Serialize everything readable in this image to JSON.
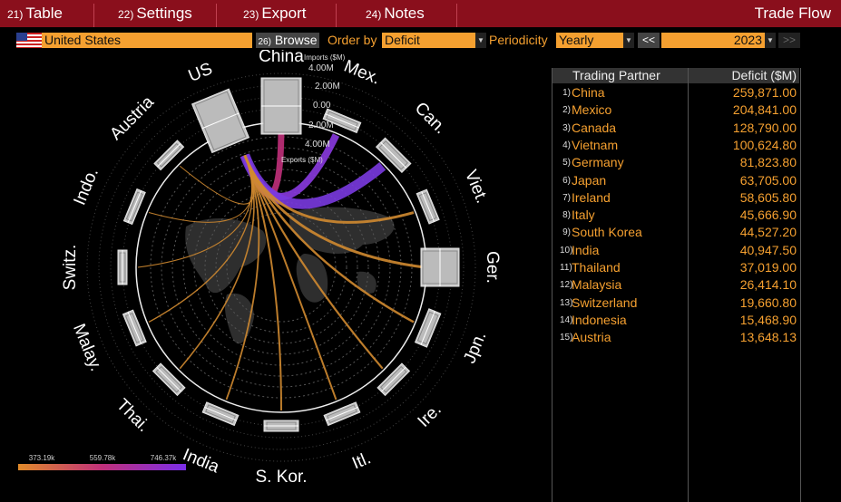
{
  "menu": {
    "items": [
      {
        "num": "21)",
        "label": "Table"
      },
      {
        "num": "22)",
        "label": "Settings"
      },
      {
        "num": "23)",
        "label": "Export"
      },
      {
        "num": "24)",
        "label": "Notes"
      }
    ],
    "title": "Trade Flow"
  },
  "toolbar": {
    "country": "United States",
    "browse": {
      "num": "26)",
      "label": "Browse"
    },
    "order_label": "Order by",
    "order_value": "Deficit",
    "periodicity_label": "Periodicity",
    "periodicity_value": "Yearly",
    "prev": "<<",
    "year": "2023",
    "next": ">>"
  },
  "diagram": {
    "nodes": [
      "US",
      "China",
      "Mex.",
      "Can.",
      "Viet.",
      "Ger.",
      "Jpn.",
      "Ire.",
      "Itl.",
      "S. Kor.",
      "India",
      "Thai.",
      "Malay.",
      "Switz.",
      "Indo.",
      "Austria"
    ],
    "axis_labels": {
      "imports": "Imports ($M)",
      "exports": "Exports ($M)",
      "ticks": [
        "4.00M",
        "2.00M",
        "0.00",
        "2.00M",
        "4.00M"
      ]
    },
    "legend": [
      "373.19k",
      "559.78k",
      "746.37k"
    ]
  },
  "table": {
    "header": [
      "Trading Partner",
      "Deficit ($M)"
    ],
    "rows": [
      [
        "1)",
        "China",
        "259,871.00"
      ],
      [
        "2)",
        "Mexico",
        "204,841.00"
      ],
      [
        "3)",
        "Canada",
        "128,790.00"
      ],
      [
        "4)",
        "Vietnam",
        "100,624.80"
      ],
      [
        "5)",
        "Germany",
        "81,823.80"
      ],
      [
        "6)",
        "Japan",
        "63,705.00"
      ],
      [
        "7)",
        "Ireland",
        "58,605.80"
      ],
      [
        "8)",
        "Italy",
        "45,666.90"
      ],
      [
        "9)",
        "South Korea",
        "44,527.20"
      ],
      [
        "10)",
        "India",
        "40,947.50"
      ],
      [
        "11)",
        "Thailand",
        "37,019.00"
      ],
      [
        "12)",
        "Malaysia",
        "26,414.10"
      ],
      [
        "13)",
        "Switzerland",
        "19,660.80"
      ],
      [
        "14)",
        "Indonesia",
        "15,468.90"
      ],
      [
        "15)",
        "Austria",
        "13,648.13"
      ]
    ]
  }
}
